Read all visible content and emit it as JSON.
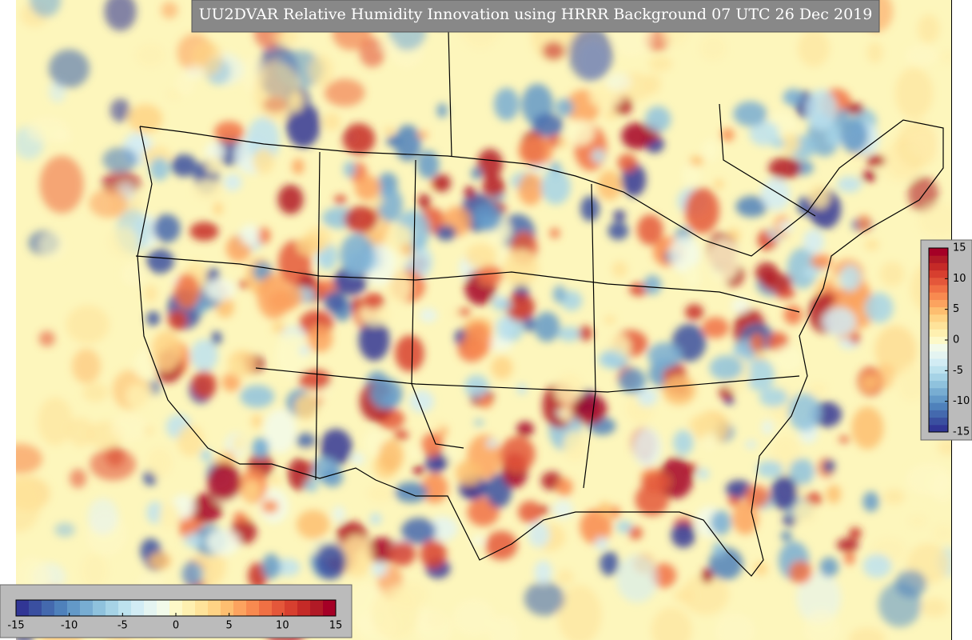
{
  "title": "UU2DVAR Relative Humidity Innovation using HRRR Background 07 UTC 26 Dec 2019",
  "colorbars": [
    {
      "orientation": "vertical",
      "lim": [
        -15,
        15
      ],
      "ticks": [
        -15,
        -10,
        -5,
        0,
        5,
        10,
        15
      ]
    },
    {
      "orientation": "horizontal",
      "lim": [
        -15,
        15
      ],
      "ticks": [
        -15,
        -10,
        -5,
        0,
        5,
        10,
        15
      ]
    }
  ],
  "colors": [
    "#313695",
    "#3a4fa0",
    "#4469ae",
    "#4f81bb",
    "#6399c8",
    "#78add2",
    "#8fc2dd",
    "#a6d3e6",
    "#bde2ee",
    "#d2ecf4",
    "#e4f4f1",
    "#f2faea",
    "#fdf9c8",
    "#fef0b0",
    "#fee39a",
    "#fed385",
    "#fdbe70",
    "#fca35f",
    "#f88a50",
    "#f07044",
    "#e4573a",
    "#d73f2f",
    "#c52a27",
    "#b11a26",
    "#a50026"
  ]
}
